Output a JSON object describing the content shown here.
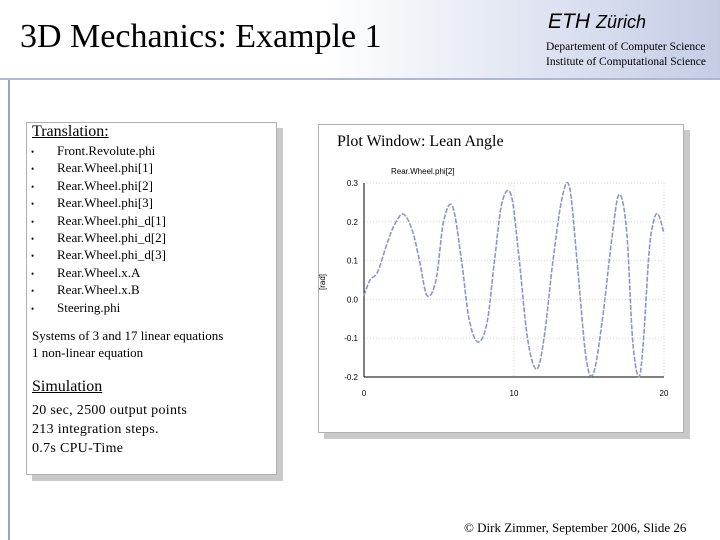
{
  "header": {
    "title": "3D Mechanics: Example 1",
    "eth_name": "ETH",
    "eth_city": "Zürich",
    "department": "Departement of Computer Science",
    "institute": "Institute of Computational Science"
  },
  "translation": {
    "heading": "Translation:",
    "bullet": "•",
    "items": [
      "Front.Revolute.phi",
      "Rear.Wheel.phi[1]",
      "Rear.Wheel.phi[2]",
      "Rear.Wheel.phi[3]",
      "Rear.Wheel.phi_d[1]",
      "Rear.Wheel.phi_d[2]",
      "Rear.Wheel.phi_d[3]",
      "Rear.Wheel.x.A",
      "Rear.Wheel.x.B",
      "Steering.phi"
    ],
    "systems_line1": "Systems of 3 and 17 linear equations",
    "systems_line2": "1 non-linear equation"
  },
  "simulation": {
    "heading": "Simulation",
    "line1": "20 sec, 2500 output points",
    "line2": "213 integration steps.",
    "line3": "0.7s CPU-Time"
  },
  "plot": {
    "window_title": "Plot Window: Lean Angle"
  },
  "chart_data": {
    "type": "line",
    "title": "",
    "legend": "Rear.Wheel.phi[2]",
    "ylabel": "[rad]",
    "xlabel": "",
    "xlim": [
      0,
      20
    ],
    "ylim": [
      -0.2,
      0.3
    ],
    "x_ticks": [
      0,
      10,
      20
    ],
    "y_ticks": [
      0.3,
      0.2,
      0.1,
      0.0,
      -0.1,
      -0.2
    ],
    "x_tick_labels": [
      "0",
      "10",
      "20"
    ],
    "y_tick_labels": [
      "0.3",
      "0.2",
      "0.1",
      "0.0",
      "-0.1",
      "-0.2"
    ],
    "grid": true,
    "line_color": "#8a97cc",
    "series": [
      {
        "name": "Rear.Wheel.phi[2]",
        "x": [
          0,
          0.4,
          0.9,
          1.5,
          2.0,
          2.6,
          3.2,
          3.7,
          4.2,
          4.8,
          5.3,
          5.9,
          6.5,
          7.0,
          7.6,
          8.2,
          8.7,
          9.2,
          9.8,
          10.3,
          10.9,
          11.5,
          12.0,
          12.6,
          13.2,
          13.7,
          14.2,
          14.8,
          15.3,
          15.9,
          16.5,
          17.0,
          17.5,
          17.9,
          18.3,
          18.6,
          19.0,
          19.3,
          19.6,
          20.0
        ],
        "y": [
          0.01,
          0.05,
          0.07,
          0.14,
          0.19,
          0.22,
          0.18,
          0.1,
          0.01,
          0.05,
          0.2,
          0.24,
          0.1,
          -0.05,
          -0.11,
          -0.06,
          0.1,
          0.25,
          0.27,
          0.12,
          -0.1,
          -0.18,
          -0.1,
          0.1,
          0.26,
          0.29,
          0.1,
          -0.15,
          -0.19,
          -0.05,
          0.15,
          0.27,
          0.18,
          -0.1,
          -0.2,
          -0.12,
          0.12,
          0.2,
          0.22,
          0.17
        ]
      }
    ]
  },
  "footer": {
    "text": "© Dirk Zimmer, September 2006, Slide 26"
  }
}
